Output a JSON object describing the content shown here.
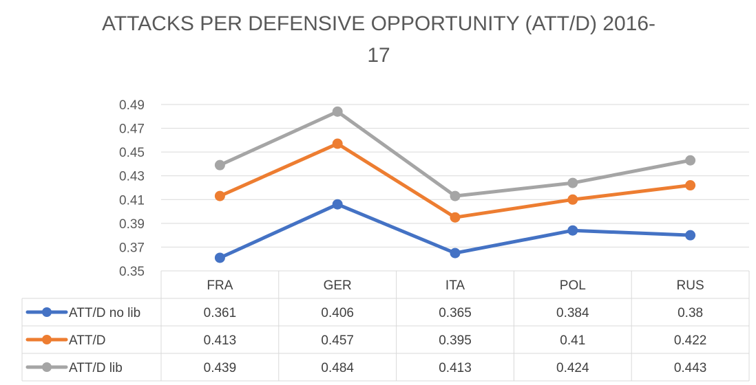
{
  "chart_data": {
    "type": "line",
    "title_line1": "ATTACKS PER DEFENSIVE OPPORTUNITY (ATT/D)  2016-",
    "title_line2": "17",
    "categories": [
      "FRA",
      "GER",
      "ITA",
      "POL",
      "RUS"
    ],
    "ylim": [
      0.35,
      0.49
    ],
    "yticks": [
      "0.35",
      "0.37",
      "0.39",
      "0.41",
      "0.43",
      "0.45",
      "0.47",
      "0.49"
    ],
    "grid": true,
    "legend_placement": "data-table-bottom",
    "series": [
      {
        "name": "ATT/D no lib",
        "color": "#4472C4",
        "values": [
          0.361,
          0.406,
          0.365,
          0.384,
          0.38
        ],
        "labels": [
          "0.361",
          "0.406",
          "0.365",
          "0.384",
          "0.38"
        ]
      },
      {
        "name": "ATT/D",
        "color": "#ED7D31",
        "values": [
          0.413,
          0.457,
          0.395,
          0.41,
          0.422
        ],
        "labels": [
          "0.413",
          "0.457",
          "0.395",
          "0.41",
          "0.422"
        ]
      },
      {
        "name": "ATT/D lib",
        "color": "#A5A5A5",
        "values": [
          0.439,
          0.484,
          0.413,
          0.424,
          0.443
        ],
        "labels": [
          "0.439",
          "0.484",
          "0.413",
          "0.424",
          "0.443"
        ]
      }
    ]
  }
}
